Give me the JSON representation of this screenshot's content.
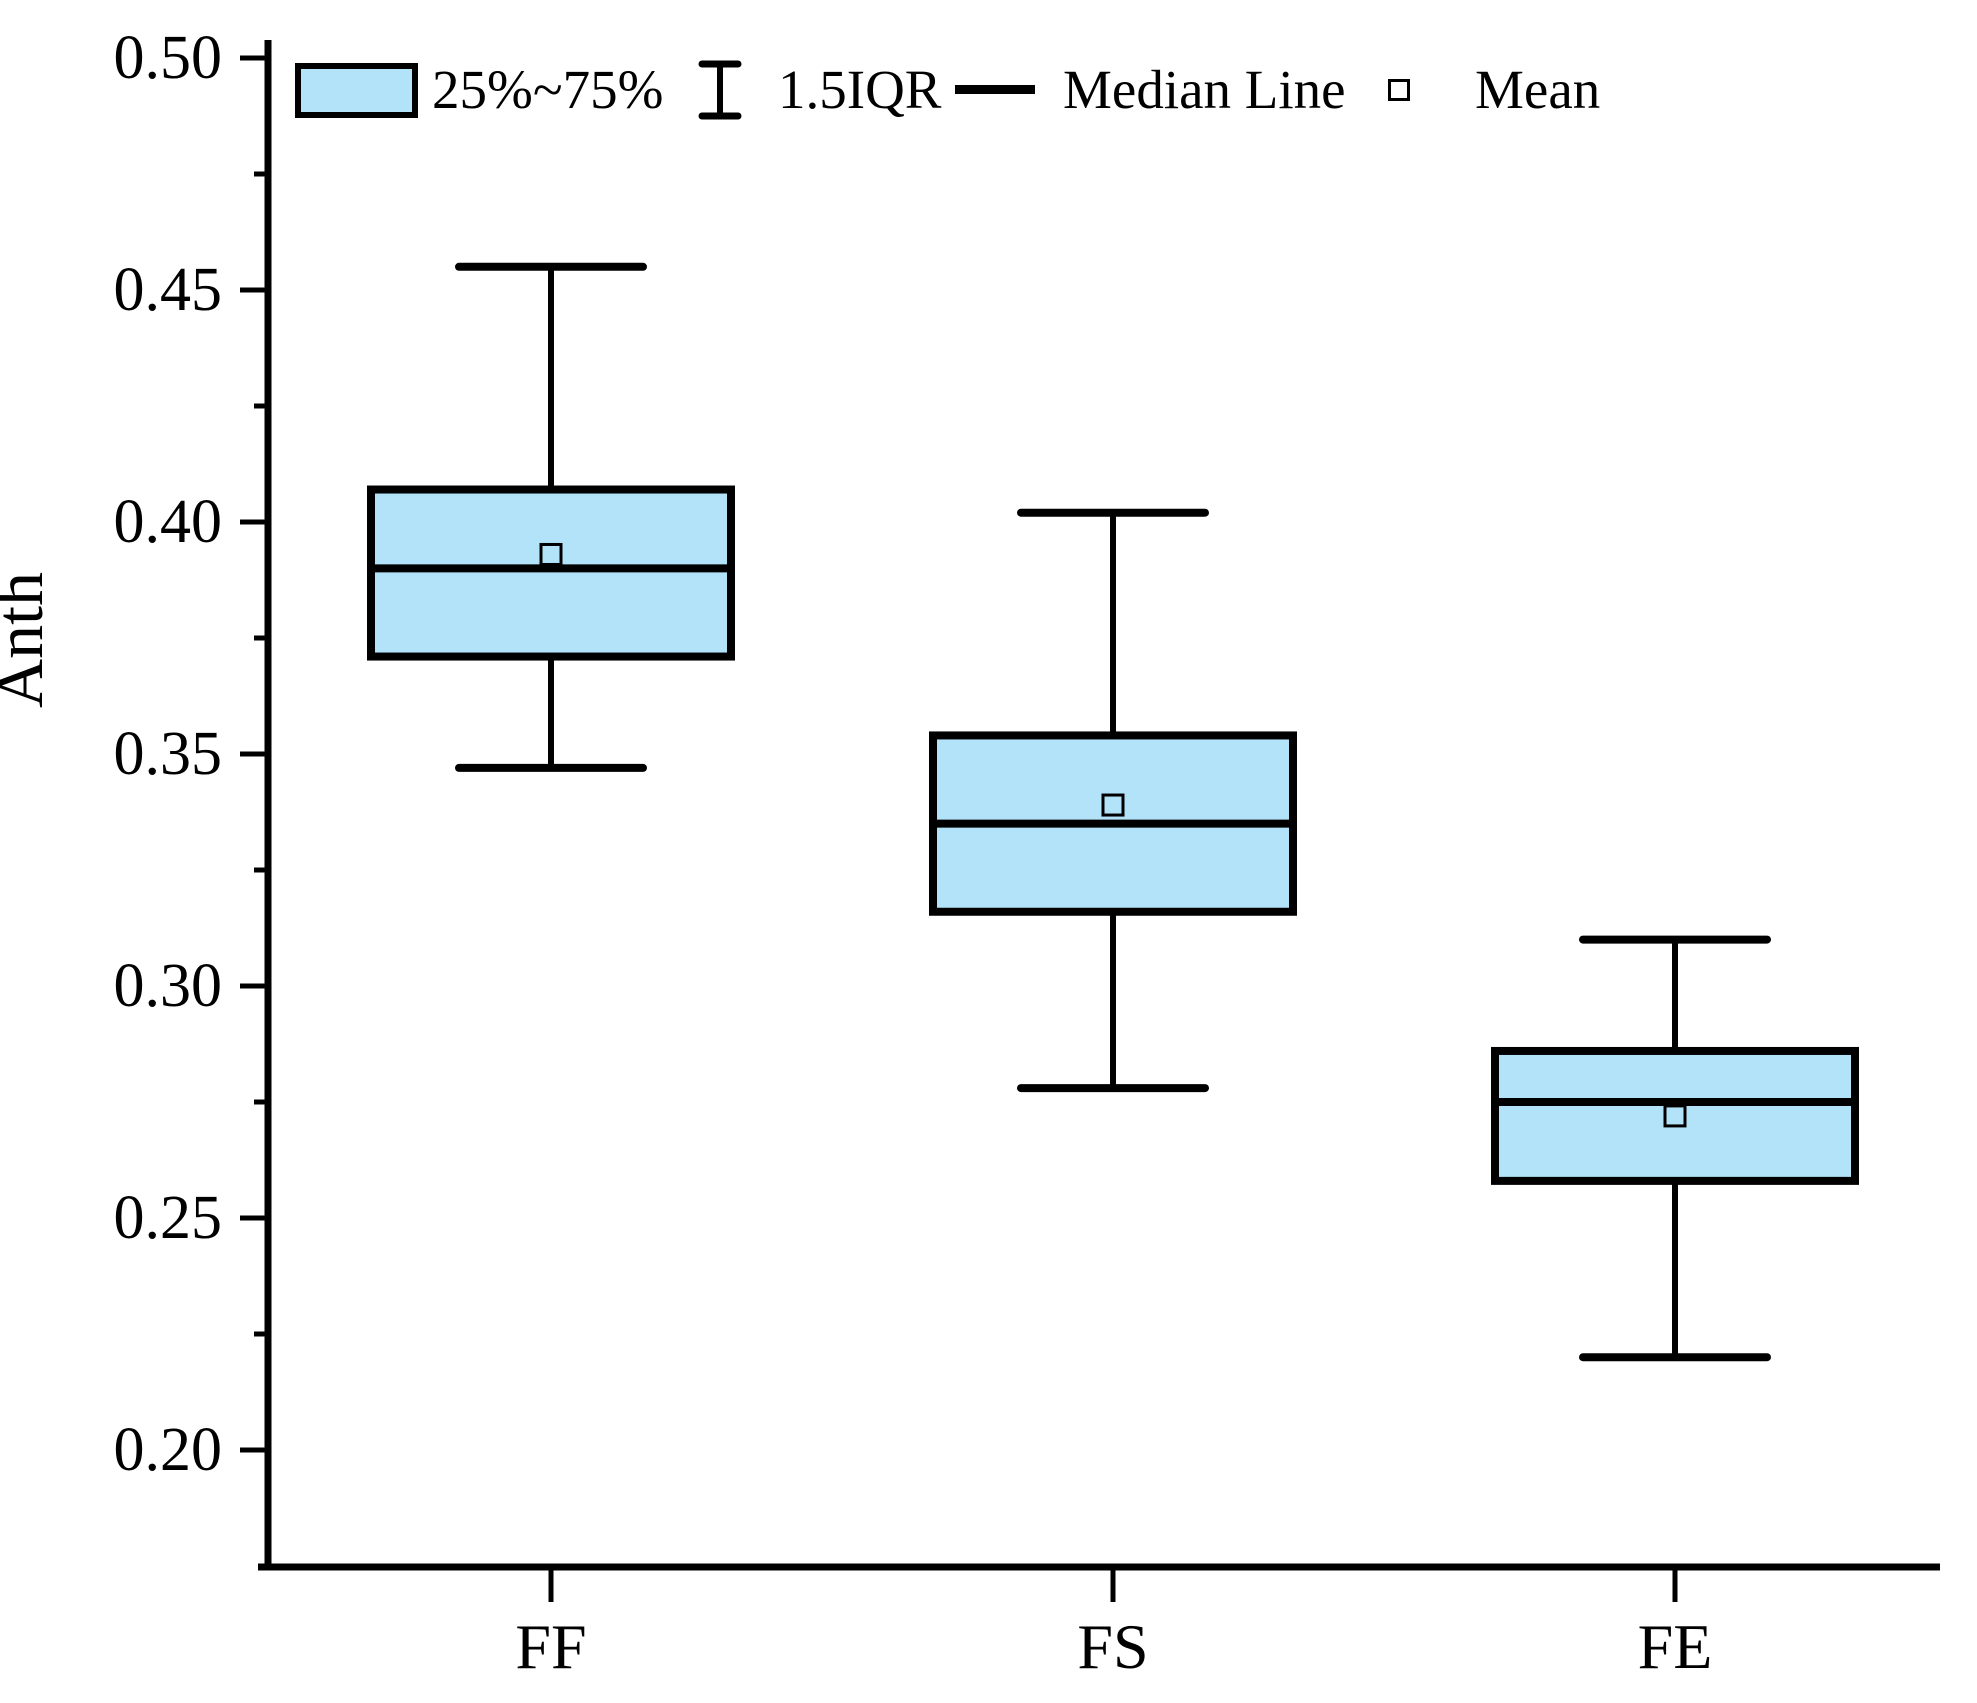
{
  "figure": {
    "background": "#FFFFFF",
    "box_fill": "#B2E3F9",
    "line_color": "#000000"
  },
  "chart_data": {
    "type": "box",
    "title": "",
    "xlabel": "",
    "ylabel": "Anth",
    "categories": [
      "FF",
      "FS",
      "FE"
    ],
    "ylim": [
      0.175,
      0.505
    ],
    "yticks": [
      0.5,
      0.45,
      0.4,
      0.35,
      0.3,
      0.25,
      0.2
    ],
    "ytick_labels": [
      "0.50",
      "0.45",
      "0.40",
      "0.35",
      "0.30",
      "0.25",
      "0.20"
    ],
    "minor_yticks": [
      0.475,
      0.425,
      0.375,
      0.325,
      0.275,
      0.225
    ],
    "grid": false,
    "legend_position": "top-left-inside",
    "series": [
      {
        "category": "FF",
        "whisker_low": 0.347,
        "q1": 0.371,
        "median": 0.39,
        "mean": 0.393,
        "q3": 0.407,
        "whisker_high": 0.455
      },
      {
        "category": "FS",
        "whisker_low": 0.278,
        "q1": 0.316,
        "median": 0.335,
        "mean": 0.339,
        "q3": 0.354,
        "whisker_high": 0.402
      },
      {
        "category": "FE",
        "whisker_low": 0.22,
        "q1": 0.258,
        "median": 0.275,
        "mean": 0.272,
        "q3": 0.286,
        "whisker_high": 0.31
      }
    ],
    "legend": [
      {
        "glyph": "box",
        "label": "25%~75%"
      },
      {
        "glyph": "whisker",
        "label": "1.5IQR"
      },
      {
        "glyph": "median-line",
        "label": "Median Line"
      },
      {
        "glyph": "mean-square",
        "label": "Mean"
      }
    ]
  }
}
